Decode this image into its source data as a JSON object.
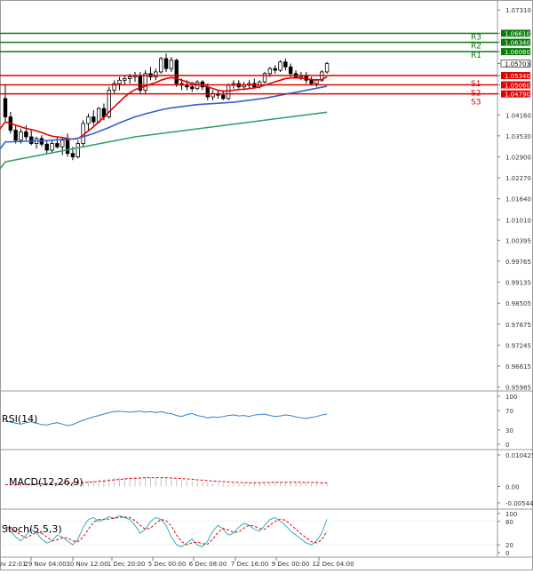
{
  "chart_data": [
    {
      "type": "candlestick",
      "panel": "price",
      "y_ticks": [
        "1.07310",
        "1.06610",
        "1.06340",
        "1.06060",
        "1.05703",
        "1.05340",
        "1.05060",
        "1.04790",
        "1.04160",
        "1.03530",
        "1.02900",
        "1.02270",
        "1.01640",
        "1.01010",
        "1.00395",
        "0.99765",
        "0.99135",
        "0.98505",
        "0.97875",
        "0.97245",
        "0.96615",
        "0.95985"
      ],
      "ylim": [
        0.9592,
        1.0745
      ],
      "current_price": "1.05703",
      "levels": [
        {
          "label": "R3",
          "value": 1.0661,
          "price_tag": "1.06610",
          "color": "#0a7a0a"
        },
        {
          "label": "R2",
          "value": 1.0634,
          "price_tag": "1.06340",
          "color": "#0a7a0a"
        },
        {
          "label": "R1",
          "value": 1.0606,
          "price_tag": "1.06060",
          "color": "#0a7a0a"
        },
        {
          "label": "S1",
          "value": 1.0534,
          "price_tag": "1.05340",
          "color": "#e00000"
        },
        {
          "label": "S2",
          "value": 1.0506,
          "price_tag": "1.05060",
          "color": "#e00000"
        },
        {
          "label": "S3",
          "value": 1.0479,
          "price_tag": "1.04790",
          "color": "#e00000"
        }
      ],
      "candles": [
        [
          1.0465,
          1.0505,
          1.0395,
          1.041
        ],
        [
          1.041,
          1.0425,
          1.036,
          1.037
        ],
        [
          1.037,
          1.0385,
          1.033,
          1.034
        ],
        [
          1.034,
          1.0375,
          1.033,
          1.0365
        ],
        [
          1.0365,
          1.0385,
          1.034,
          1.035
        ],
        [
          1.035,
          1.037,
          1.0325,
          1.033
        ],
        [
          1.033,
          1.035,
          1.0315,
          1.0345
        ],
        [
          1.0345,
          1.0355,
          1.032,
          1.0328
        ],
        [
          1.0328,
          1.034,
          1.03,
          1.031
        ],
        [
          1.031,
          1.034,
          1.03,
          1.033
        ],
        [
          1.033,
          1.035,
          1.0315,
          1.032
        ],
        [
          1.032,
          1.035,
          1.0295,
          1.034
        ],
        [
          1.034,
          1.036,
          1.029,
          1.03
        ],
        [
          1.03,
          1.032,
          1.028,
          1.029
        ],
        [
          1.029,
          1.034,
          1.0285,
          1.033
        ],
        [
          1.033,
          1.04,
          1.032,
          1.039
        ],
        [
          1.039,
          1.042,
          1.037,
          1.041
        ],
        [
          1.041,
          1.043,
          1.0385,
          1.0395
        ],
        [
          1.0395,
          1.044,
          1.039,
          1.0435
        ],
        [
          1.0435,
          1.045,
          1.04,
          1.041
        ],
        [
          1.041,
          1.05,
          1.0405,
          1.049
        ],
        [
          1.049,
          1.052,
          1.048,
          1.051
        ],
        [
          1.051,
          1.053,
          1.049,
          1.052
        ],
        [
          1.052,
          1.0535,
          1.0505,
          1.0525
        ],
        [
          1.0525,
          1.054,
          1.051,
          1.053
        ],
        [
          1.053,
          1.0545,
          1.0515,
          1.0535
        ],
        [
          1.0535,
          1.0545,
          1.048,
          1.049
        ],
        [
          1.049,
          1.055,
          1.048,
          1.054
        ],
        [
          1.054,
          1.056,
          1.052,
          1.053
        ],
        [
          1.053,
          1.0555,
          1.052,
          1.0545
        ],
        [
          1.0545,
          1.059,
          1.054,
          1.0585
        ],
        [
          1.0585,
          1.06,
          1.0545,
          1.0555
        ],
        [
          1.0555,
          1.059,
          1.0545,
          1.058
        ],
        [
          1.058,
          1.0585,
          1.05,
          1.051
        ],
        [
          1.051,
          1.0525,
          1.049,
          1.0505
        ],
        [
          1.0505,
          1.052,
          1.049,
          1.05
        ],
        [
          1.05,
          1.0515,
          1.0485,
          1.0495
        ],
        [
          1.0495,
          1.052,
          1.049,
          1.0515
        ],
        [
          1.0515,
          1.052,
          1.049,
          1.05
        ],
        [
          1.05,
          1.051,
          1.046,
          1.047
        ],
        [
          1.047,
          1.049,
          1.046,
          1.048
        ],
        [
          1.048,
          1.049,
          1.0465,
          1.0475
        ],
        [
          1.0475,
          1.049,
          1.046,
          1.0465
        ],
        [
          1.0465,
          1.051,
          1.046,
          1.0505
        ],
        [
          1.0505,
          1.052,
          1.0495,
          1.051
        ],
        [
          1.051,
          1.052,
          1.0495,
          1.05
        ],
        [
          1.05,
          1.0515,
          1.049,
          1.0505
        ],
        [
          1.0505,
          1.052,
          1.0495,
          1.051
        ],
        [
          1.051,
          1.0525,
          1.0495,
          1.05
        ],
        [
          1.05,
          1.052,
          1.0495,
          1.0515
        ],
        [
          1.0515,
          1.0545,
          1.051,
          1.054
        ],
        [
          1.054,
          1.056,
          1.053,
          1.0555
        ],
        [
          1.0555,
          1.0565,
          1.054,
          1.055
        ],
        [
          1.055,
          1.058,
          1.0545,
          1.0575
        ],
        [
          1.0575,
          1.0585,
          1.055,
          1.056
        ],
        [
          1.056,
          1.057,
          1.053,
          1.054
        ],
        [
          1.054,
          1.055,
          1.0525,
          1.053
        ],
        [
          1.053,
          1.0545,
          1.052,
          1.0535
        ],
        [
          1.0535,
          1.0545,
          1.051,
          1.052
        ],
        [
          1.052,
          1.053,
          1.0505,
          1.051
        ],
        [
          1.051,
          1.0525,
          1.05,
          1.052
        ],
        [
          1.052,
          1.055,
          1.0515,
          1.0545
        ],
        [
          1.0545,
          1.0575,
          1.054,
          1.057
        ]
      ],
      "series": [
        {
          "color": "#e00000",
          "values": [
            1.0395,
            1.039,
            1.0385,
            1.038,
            1.0375,
            1.0372,
            1.0368,
            1.0363,
            1.0357,
            1.0352,
            1.035,
            1.0348,
            1.0345,
            1.0343,
            1.0345,
            1.0355,
            1.0368,
            1.038,
            1.0395,
            1.0408,
            1.0425,
            1.044,
            1.0455,
            1.047,
            1.0482,
            1.0492,
            1.0497,
            1.0502,
            1.0508,
            1.0513,
            1.052,
            1.0525,
            1.0528,
            1.0525,
            1.052,
            1.0515,
            1.051,
            1.0508,
            1.0505,
            1.05,
            1.0495,
            1.049,
            1.0487,
            1.0488,
            1.049,
            1.0492,
            1.0493,
            1.0495,
            1.0497,
            1.05,
            1.0505,
            1.051,
            1.0515,
            1.052,
            1.0525,
            1.0527,
            1.0527,
            1.0526,
            1.0525,
            1.0522,
            1.0521,
            1.0522,
            1.053
          ]
        },
        {
          "color": "#3060d0",
          "values": [
            1.0335,
            1.0335,
            1.0336,
            1.0336,
            1.0337,
            1.0337,
            1.0338,
            1.0338,
            1.0339,
            1.034,
            1.0341,
            1.0342,
            1.0343,
            1.0344,
            1.0346,
            1.035,
            1.0355,
            1.036,
            1.0366,
            1.0372,
            1.0378,
            1.0385,
            1.0392,
            1.0398,
            1.0404,
            1.041,
            1.0414,
            1.0419,
            1.0423,
            1.0427,
            1.0431,
            1.0434,
            1.0437,
            1.0439,
            1.0441,
            1.0443,
            1.0445,
            1.0447,
            1.0448,
            1.0449,
            1.045,
            1.0451,
            1.0452,
            1.0453,
            1.0454,
            1.0456,
            1.0458,
            1.046,
            1.0462,
            1.0464,
            1.0466,
            1.0469,
            1.0472,
            1.0475,
            1.0478,
            1.0481,
            1.0484,
            1.0487,
            1.049,
            1.0493,
            1.0496,
            1.0499,
            1.0502
          ]
        },
        {
          "color": "#30a060",
          "values": [
            1.0275,
            1.0278,
            1.0281,
            1.0284,
            1.0287,
            1.029,
            1.0293,
            1.0296,
            1.0299,
            1.0302,
            1.0305,
            1.0308,
            1.0311,
            1.0314,
            1.0317,
            1.032,
            1.0323,
            1.0326,
            1.0329,
            1.0332,
            1.0335,
            1.0338,
            1.0341,
            1.0344,
            1.0347,
            1.035,
            1.0352,
            1.0354,
            1.0356,
            1.0358,
            1.036,
            1.0362,
            1.0364,
            1.0366,
            1.0368,
            1.037,
            1.0372,
            1.0374,
            1.0376,
            1.0378,
            1.038,
            1.0382,
            1.0384,
            1.0386,
            1.0388,
            1.039,
            1.0392,
            1.0394,
            1.0396,
            1.0398,
            1.04,
            1.0402,
            1.0404,
            1.0406,
            1.0408,
            1.041,
            1.0412,
            1.0414,
            1.0416,
            1.0418,
            1.042,
            1.0422,
            1.0424
          ]
        }
      ],
      "x_tick_labels": [
        "ov 22:01",
        "29 Nov 04:00",
        "30 Nov 12:00",
        "1 Dec 20:00",
        "5 Dec 00:00",
        "6 Dec 08:00",
        "7 Dec 16:00",
        "9 Dec 00:00",
        "12 Dec 04:00"
      ]
    },
    {
      "type": "line",
      "panel": "rsi",
      "title": "RSI(14)",
      "y_ticks": [
        "100",
        "70",
        "30",
        "0"
      ],
      "ylim": [
        0,
        100
      ],
      "series": [
        {
          "color": "#2f80d0",
          "values": [
            48,
            46,
            44,
            42,
            45,
            47,
            44,
            41,
            40,
            43,
            45,
            42,
            39,
            41,
            46,
            50,
            54,
            57,
            60,
            63,
            66,
            68,
            69,
            68,
            67,
            68,
            69,
            67,
            68,
            66,
            68,
            65,
            64,
            60,
            58,
            62,
            64,
            60,
            58,
            55,
            57,
            56,
            58,
            60,
            61,
            59,
            60,
            58,
            61,
            62,
            63,
            60,
            58,
            59,
            61,
            60,
            57,
            55,
            54,
            56,
            58,
            61,
            63
          ]
        }
      ]
    },
    {
      "type": "bar",
      "panel": "macd",
      "title": "MACD(12,26,9)",
      "y_ticks": [
        "0.010425",
        "0.00",
        "-0.005445"
      ],
      "ylim": [
        -0.005445,
        0.010425
      ],
      "series": [
        {
          "name": "MACD",
          "type": "bar",
          "color": "#c0c0c0",
          "values": [
            0.0004,
            0.0005,
            0.0006,
            0.0007,
            0.0008,
            0.0009,
            0.001,
            0.001,
            0.0011,
            0.0011,
            0.0012,
            0.0012,
            0.0013,
            0.0014,
            0.0015,
            0.0016,
            0.0018,
            0.002,
            0.0022,
            0.0024,
            0.0026,
            0.0028,
            0.0029,
            0.003,
            0.0031,
            0.0031,
            0.0031,
            0.003,
            0.003,
            0.0029,
            0.0028,
            0.0027,
            0.0026,
            0.0024,
            0.0022,
            0.002,
            0.0018,
            0.0016,
            0.0014,
            0.0013,
            0.0012,
            0.0011,
            0.001,
            0.0009,
            0.0009,
            0.0009,
            0.001,
            0.001,
            0.0011,
            0.0012,
            0.0013,
            0.0014,
            0.0015,
            0.0015,
            0.0015,
            0.0014,
            0.0013,
            0.0013,
            0.0012,
            0.0012,
            0.0011,
            0.0011,
            0.0011
          ]
        },
        {
          "name": "Signal",
          "type": "line",
          "color": "#e00000",
          "values": [
            0.0006,
            0.0006,
            0.0006,
            0.0007,
            0.0007,
            0.0008,
            0.0008,
            0.0009,
            0.0009,
            0.001,
            0.001,
            0.0011,
            0.0011,
            0.0012,
            0.0012,
            0.0013,
            0.0014,
            0.0015,
            0.0017,
            0.0018,
            0.002,
            0.0022,
            0.0023,
            0.0025,
            0.0026,
            0.0027,
            0.0028,
            0.0029,
            0.0029,
            0.0029,
            0.0029,
            0.0029,
            0.0028,
            0.0027,
            0.0026,
            0.0025,
            0.0024,
            0.0022,
            0.0021,
            0.0019,
            0.0018,
            0.0017,
            0.0016,
            0.0015,
            0.0014,
            0.0013,
            0.0013,
            0.0012,
            0.0012,
            0.0012,
            0.0013,
            0.0013,
            0.0014,
            0.0014,
            0.0014,
            0.0014,
            0.0014,
            0.0014,
            0.0013,
            0.0013,
            0.0013,
            0.0012,
            0.0012
          ]
        }
      ]
    },
    {
      "type": "line",
      "panel": "stoch",
      "title": "Stoch(5,5,3)",
      "y_ticks": [
        "100",
        "80",
        "20",
        "0"
      ],
      "ylim": [
        0,
        100
      ],
      "series": [
        {
          "color": "#30b0c0",
          "values": [
            70,
            55,
            40,
            30,
            45,
            60,
            50,
            35,
            25,
            30,
            45,
            40,
            30,
            20,
            35,
            65,
            85,
            90,
            80,
            85,
            92,
            88,
            94,
            90,
            85,
            70,
            50,
            60,
            80,
            90,
            85,
            70,
            40,
            20,
            15,
            25,
            35,
            20,
            15,
            30,
            55,
            70,
            60,
            45,
            50,
            65,
            75,
            70,
            60,
            55,
            70,
            85,
            90,
            80,
            70,
            55,
            45,
            35,
            25,
            20,
            30,
            50,
            85
          ]
        },
        {
          "color": "#e00000",
          "values": [
            65,
            62,
            55,
            45,
            38,
            45,
            52,
            50,
            40,
            30,
            33,
            38,
            38,
            30,
            28,
            40,
            60,
            78,
            85,
            85,
            86,
            88,
            91,
            91,
            90,
            82,
            70,
            60,
            63,
            75,
            85,
            82,
            68,
            45,
            28,
            20,
            25,
            27,
            23,
            22,
            35,
            52,
            62,
            58,
            52,
            53,
            63,
            70,
            68,
            62,
            60,
            70,
            80,
            86,
            83,
            72,
            60,
            48,
            38,
            28,
            25,
            33,
            55
          ]
        }
      ]
    }
  ]
}
